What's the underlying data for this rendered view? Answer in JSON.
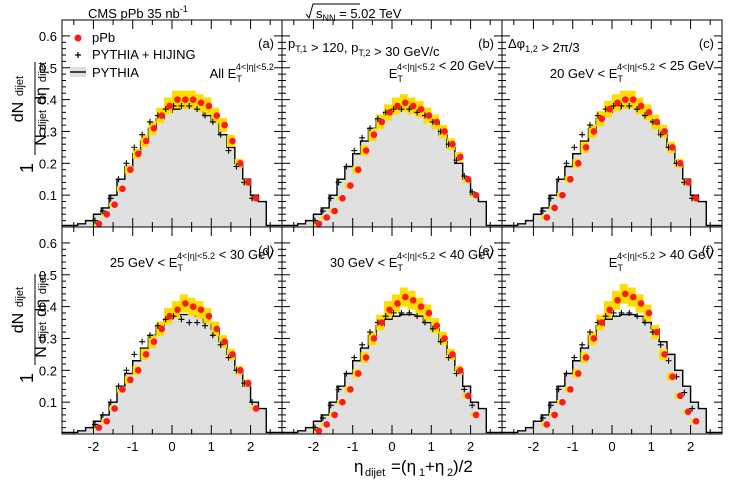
{
  "header": {
    "left": "CMS  pPb  35 nb",
    "left_sup": "-1",
    "right_main": "s",
    "right_sub": "NN",
    "right_value": " = 5.02 TeV"
  },
  "axes": {
    "xlabel": "η_dijet=(η1+η2)/2",
    "ylabel": "1/N_dijet dN_dijet/dη_dijet",
    "xlim": [
      -2.8,
      2.8
    ],
    "ylim": [
      0,
      0.65
    ],
    "yticks": [
      "0.1",
      "0.2",
      "0.3",
      "0.4",
      "0.5",
      "0.6"
    ],
    "xticks": [
      "-2",
      "-1",
      "0",
      "1",
      "2"
    ]
  },
  "legend": {
    "ppb": "pPb",
    "pythia_hijing": "PYTHIA + HIJING",
    "pythia": "PYTHIA"
  },
  "colors": {
    "ppb_marker": "#ff1a1a",
    "syst_box": "#ffdd00",
    "pythia_fill": "#e0e0e0",
    "pythia_line": "#000000"
  },
  "panels": [
    {
      "label": "(a)",
      "annotation_lines": [
        "All E_T^{4<|η|<5.2}"
      ]
    },
    {
      "label": "(b)",
      "annotation_lines": [
        "p_T,1 > 120, p_T,2 > 30 GeV/c",
        "E_T^{4<|η|<5.2} < 20 GeV"
      ]
    },
    {
      "label": "(c)",
      "annotation_lines": [
        "Δφ_1,2 > 2π/3",
        "20 GeV < E_T^{4<|η|<5.2} < 25 GeV"
      ]
    },
    {
      "label": "(d)",
      "annotation_lines": [
        "25 GeV < E_T^{4<|η|<5.2} < 30 GeV"
      ]
    },
    {
      "label": "(e)",
      "annotation_lines": [
        "30 GeV < E_T^{4<|η|<5.2} < 40 GeV"
      ]
    },
    {
      "label": "(f)",
      "annotation_lines": [
        "E_T^{4<|η|<5.2} > 40 GeV"
      ]
    }
  ],
  "chart_data": {
    "type": "line",
    "title": "",
    "xlabel": "η_dijet=(η1+η2)/2",
    "ylabel": "1/N_dijet dN_dijet/dη_dijet",
    "xlim": [
      -2.8,
      2.8
    ],
    "ylim": [
      0,
      0.65
    ],
    "bin_edges": [
      -2.8,
      -2.4,
      -2.2,
      -2.0,
      -1.8,
      -1.6,
      -1.4,
      -1.2,
      -1.0,
      -0.8,
      -0.6,
      -0.4,
      -0.2,
      0.0,
      0.2,
      0.4,
      0.6,
      0.8,
      1.0,
      1.2,
      1.4,
      1.6,
      1.8,
      2.0,
      2.2,
      2.4,
      2.8
    ],
    "pythia": [
      0.005,
      0.01,
      0.02,
      0.04,
      0.06,
      0.1,
      0.15,
      0.19,
      0.23,
      0.27,
      0.31,
      0.34,
      0.36,
      0.37,
      0.375,
      0.375,
      0.37,
      0.35,
      0.33,
      0.29,
      0.25,
      0.2,
      0.15,
      0.1,
      0.08,
      0.005
    ],
    "point_x": [
      -2.6,
      -2.2,
      -1.9,
      -1.7,
      -1.5,
      -1.3,
      -1.1,
      -0.9,
      -0.7,
      -0.5,
      -0.3,
      -0.1,
      0.1,
      0.3,
      0.5,
      0.7,
      0.9,
      1.1,
      1.3,
      1.5,
      1.7,
      1.9,
      2.1,
      2.3,
      2.6
    ],
    "series": [
      {
        "panel": "(a)",
        "ppb": [
          null,
          null,
          0.01,
          0.04,
          0.07,
          0.12,
          0.18,
          0.23,
          0.27,
          0.31,
          0.35,
          0.38,
          0.4,
          0.4,
          0.4,
          0.39,
          0.38,
          0.35,
          0.32,
          0.27,
          0.2,
          0.14,
          0.09,
          null,
          null
        ],
        "pythia_hijing": [
          null,
          null,
          0.02,
          0.05,
          0.09,
          0.15,
          0.2,
          0.25,
          0.29,
          0.33,
          0.35,
          0.37,
          0.38,
          0.38,
          0.38,
          0.37,
          0.35,
          0.33,
          0.29,
          0.24,
          0.19,
          0.14,
          0.09,
          null,
          null
        ]
      },
      {
        "panel": "(b)",
        "ppb": [
          null,
          null,
          0.01,
          0.03,
          0.05,
          0.09,
          0.13,
          0.18,
          0.24,
          0.29,
          0.33,
          0.36,
          0.38,
          0.39,
          0.38,
          0.37,
          0.35,
          0.33,
          0.3,
          0.26,
          0.22,
          0.15,
          0.1,
          null,
          null
        ],
        "pythia_hijing": [
          null,
          null,
          0.02,
          0.05,
          0.09,
          0.14,
          0.19,
          0.24,
          0.28,
          0.31,
          0.34,
          0.36,
          0.37,
          0.37,
          0.37,
          0.36,
          0.35,
          0.33,
          0.3,
          0.26,
          0.21,
          0.16,
          0.11,
          null,
          null
        ]
      },
      {
        "panel": "(c)",
        "ppb": [
          null,
          null,
          null,
          0.03,
          0.06,
          0.1,
          0.15,
          0.2,
          0.25,
          0.3,
          0.34,
          0.37,
          0.39,
          0.4,
          0.4,
          0.38,
          0.36,
          0.33,
          0.3,
          0.25,
          0.2,
          0.14,
          0.09,
          null,
          null
        ],
        "pythia_hijing": [
          null,
          null,
          null,
          0.05,
          0.09,
          0.15,
          0.2,
          0.25,
          0.29,
          0.32,
          0.35,
          0.37,
          0.38,
          0.38,
          0.38,
          0.37,
          0.35,
          0.33,
          0.29,
          0.25,
          0.2,
          0.14,
          0.09,
          null,
          null
        ]
      },
      {
        "panel": "(d)",
        "ppb": [
          null,
          null,
          0.02,
          0.04,
          0.08,
          0.14,
          0.17,
          0.2,
          0.25,
          0.29,
          0.33,
          0.37,
          0.39,
          0.41,
          0.4,
          0.39,
          0.37,
          0.33,
          0.29,
          0.25,
          0.2,
          0.16,
          0.08,
          null,
          null
        ],
        "pythia_hijing": [
          null,
          null,
          0.03,
          0.06,
          0.1,
          0.15,
          0.2,
          0.25,
          0.29,
          0.31,
          0.34,
          0.36,
          0.37,
          0.36,
          0.35,
          0.35,
          0.34,
          0.31,
          0.28,
          0.24,
          0.2,
          0.16,
          0.1,
          null,
          null
        ]
      },
      {
        "panel": "(e)",
        "ppb": [
          null,
          null,
          0.01,
          0.03,
          0.06,
          0.1,
          0.14,
          0.19,
          0.24,
          0.3,
          0.35,
          0.39,
          0.41,
          0.43,
          0.42,
          0.4,
          0.38,
          0.34,
          0.3,
          0.25,
          0.2,
          0.12,
          0.06,
          null,
          null
        ],
        "pythia_hijing": [
          null,
          null,
          0.02,
          0.05,
          0.09,
          0.14,
          0.19,
          0.24,
          0.28,
          0.32,
          0.35,
          0.37,
          0.38,
          0.38,
          0.38,
          0.37,
          0.35,
          0.33,
          0.29,
          0.24,
          0.19,
          0.14,
          0.09,
          null,
          null
        ]
      },
      {
        "panel": "(f)",
        "ppb": [
          null,
          null,
          null,
          0.03,
          0.06,
          0.1,
          0.14,
          0.19,
          0.24,
          0.3,
          0.35,
          0.39,
          0.42,
          0.44,
          0.43,
          0.41,
          0.38,
          0.32,
          0.25,
          0.18,
          0.12,
          0.07,
          0.04,
          null,
          null
        ],
        "pythia_hijing": [
          null,
          null,
          null,
          0.05,
          0.09,
          0.14,
          0.19,
          0.24,
          0.28,
          0.32,
          0.35,
          0.37,
          0.38,
          0.38,
          0.38,
          0.37,
          0.35,
          0.32,
          0.28,
          0.23,
          0.18,
          0.13,
          0.08,
          null,
          null
        ]
      }
    ]
  }
}
